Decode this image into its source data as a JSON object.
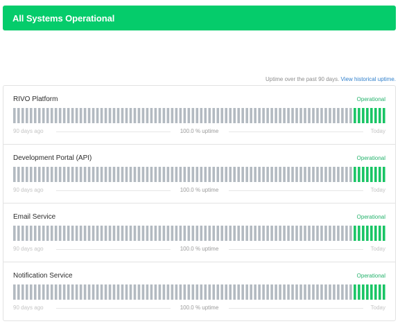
{
  "banner": {
    "text": "All Systems Operational",
    "color": "#05cc6b"
  },
  "uptime_note": {
    "text": "Uptime over the past 90 days.",
    "link": "View historical uptime."
  },
  "colors": {
    "bar_up": "#18c464",
    "bar_no_data": "#b3bac1",
    "status_operational": "#23b26b"
  },
  "components": [
    {
      "name": "RIVO Platform",
      "status": "Operational",
      "left_label": "90 days ago",
      "uptime": "100.0 % uptime",
      "right_label": "Today",
      "total_days": 90,
      "recent_up_days": 8
    },
    {
      "name": "Development Portal (API)",
      "status": "Operational",
      "left_label": "90 days ago",
      "uptime": "100.0 % uptime",
      "right_label": "Today",
      "total_days": 90,
      "recent_up_days": 8
    },
    {
      "name": "Email Service",
      "status": "Operational",
      "left_label": "90 days ago",
      "uptime": "100.0 % uptime",
      "right_label": "Today",
      "total_days": 90,
      "recent_up_days": 8
    },
    {
      "name": "Notification Service",
      "status": "Operational",
      "left_label": "90 days ago",
      "uptime": "100.0 % uptime",
      "right_label": "Today",
      "total_days": 90,
      "recent_up_days": 8
    }
  ]
}
